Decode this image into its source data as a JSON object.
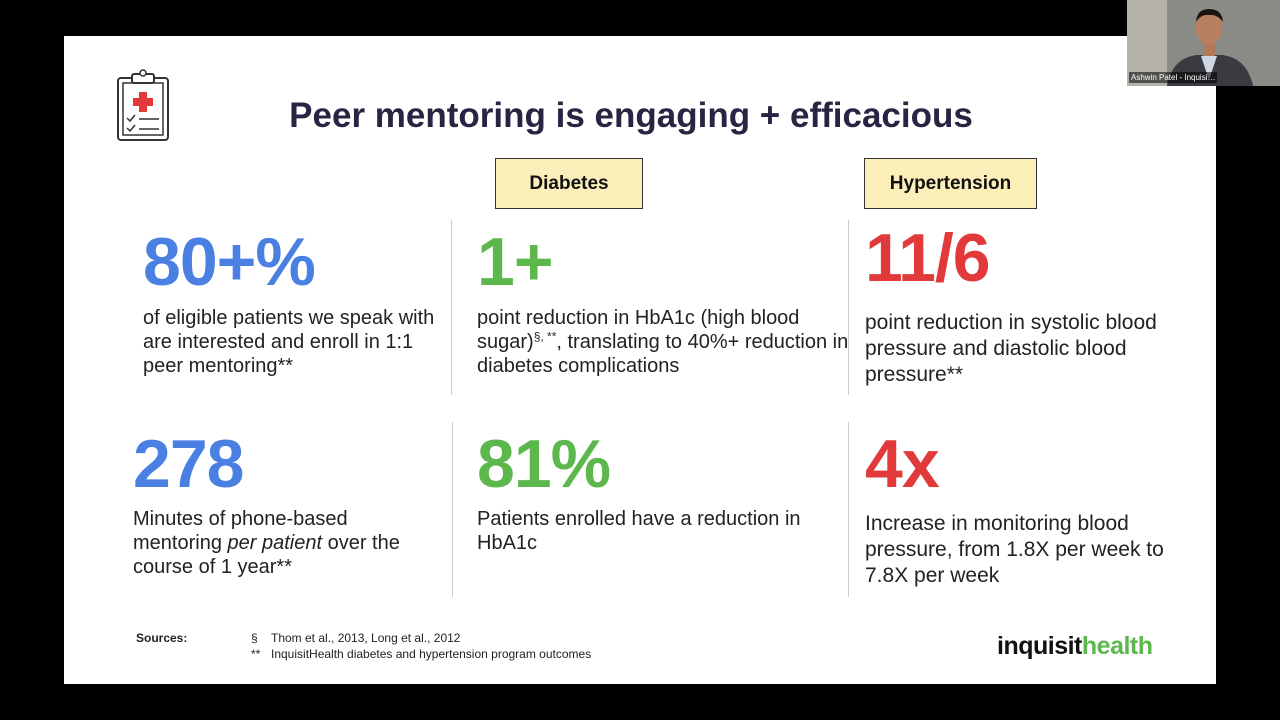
{
  "meeting": {
    "participant_name": "Ashwin Patel - Inquisi…"
  },
  "slide": {
    "title": "Peer mentoring is engaging + efficacious",
    "column_headers": [
      "Diabetes",
      "Hypertension"
    ],
    "stats": [
      {
        "figure": "80+%",
        "color": "#4a80e2",
        "description": [
          {
            "text": "of eligible patients we speak with are interested and enroll in 1:1 peer mentoring**"
          }
        ]
      },
      {
        "figure": "1+",
        "color": "#5cb84c",
        "description": [
          {
            "text": "point reduction in HbA1c (high blood sugar)"
          },
          {
            "text": "§, **",
            "style": "sup"
          },
          {
            "text": ", translating to 40%+ reduction in diabetes complications"
          }
        ]
      },
      {
        "figure": "11/6",
        "color": "#e23a3b",
        "description": [
          {
            "text": "point reduction in systolic blood pressure and diastolic blood pressure**"
          }
        ]
      },
      {
        "figure": "278",
        "color": "#4a80e2",
        "description": [
          {
            "text": "Minutes of phone-based mentoring "
          },
          {
            "text": "per patient",
            "style": "italic"
          },
          {
            "text": " over the course of 1 year**"
          }
        ]
      },
      {
        "figure": "81%",
        "color": "#5cb84c",
        "description": [
          {
            "text": "Patients enrolled have a reduction in HbA1c"
          }
        ]
      },
      {
        "figure": "4x",
        "color": "#e23a3b",
        "description": [
          {
            "text": "Increase in monitoring blood pressure, from 1.8X per week to 7.8X per week"
          }
        ]
      }
    ],
    "sources": {
      "label": "Sources:",
      "items": [
        {
          "marker": "§",
          "text": "Thom et al., 2013, Long et al., 2012"
        },
        {
          "marker": "**",
          "text": "InquisitHealth diabetes and hypertension program outcomes"
        }
      ]
    },
    "logo": [
      {
        "text": "inquisit",
        "color": "#111111"
      },
      {
        "text": "health",
        "color": "#5cb84c"
      }
    ]
  }
}
